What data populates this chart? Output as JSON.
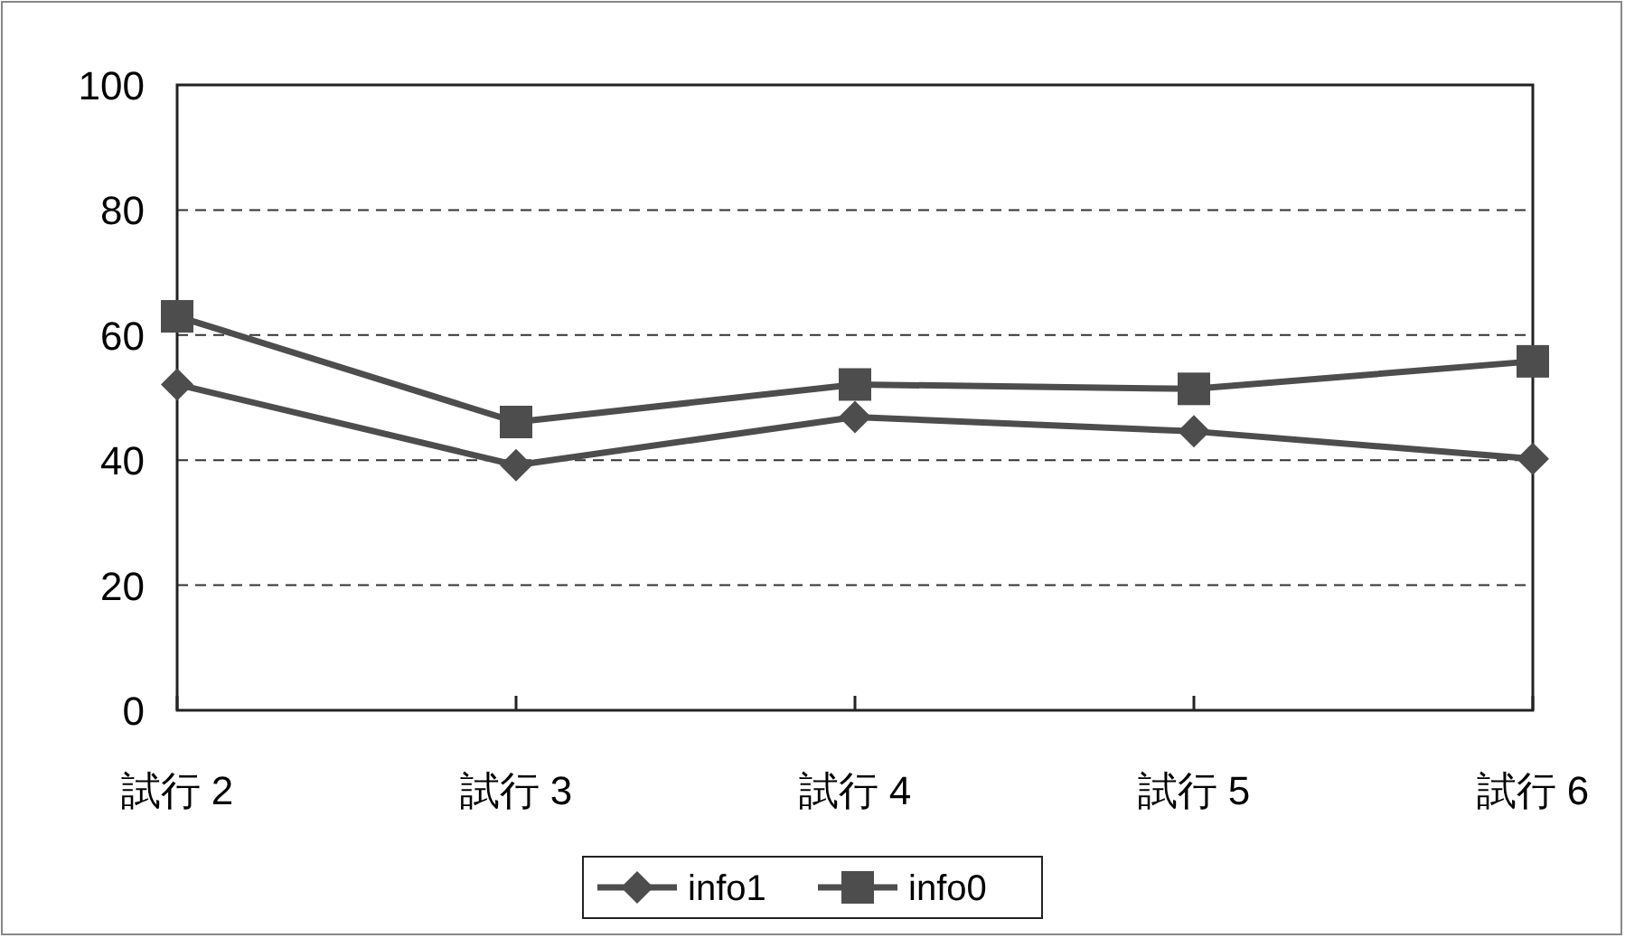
{
  "chart_data": {
    "type": "line",
    "categories": [
      "試行 2",
      "試行 3",
      "試行 4",
      "試行 5",
      "試行 6"
    ],
    "series": [
      {
        "name": "info1",
        "color": "#4d4d4d",
        "marker": "diamond",
        "values": [
          52.1,
          39.2,
          46.9,
          44.6,
          40.2
        ]
      },
      {
        "name": "info0",
        "color": "#4d4d4d",
        "marker": "square",
        "values": [
          63.0,
          46.1,
          52.1,
          51.4,
          55.8
        ]
      }
    ],
    "ylim": [
      0,
      100
    ],
    "yticks": [
      0,
      20,
      40,
      60,
      80,
      100
    ],
    "grid": "y",
    "legend": "bottom"
  }
}
